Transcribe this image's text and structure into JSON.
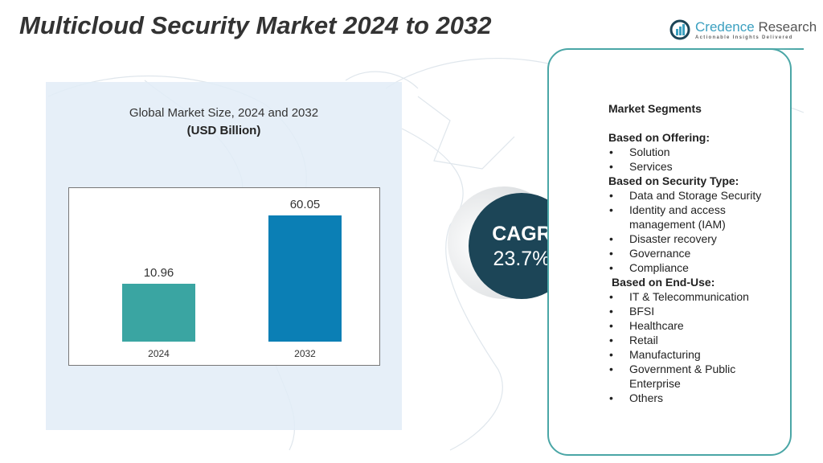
{
  "title": "Multicloud Security Market 2024 to 2032",
  "logo": {
    "name_part1": "Credence",
    "name_part2": " Research",
    "tagline": "Actionable Insights Delivered"
  },
  "chart_data": {
    "type": "bar",
    "title": "Global Market Size, 2024 and 2032",
    "unit": "(USD Billion)",
    "categories": [
      "2024",
      "2032"
    ],
    "values": [
      10.96,
      60.05
    ],
    "labels": [
      "10.96",
      "60.05"
    ],
    "colors": [
      "#3aa5a2",
      "#0b7fb5"
    ],
    "grid": false
  },
  "cagr": {
    "label": "CAGR",
    "value": "23.7%"
  },
  "segments": {
    "heading": "Market Segments",
    "groups": [
      {
        "title": "Based on Offering:",
        "items": [
          "Solution",
          "Services"
        ]
      },
      {
        "title": "Based on Security Type:",
        "items": [
          "Data and Storage Security",
          "Identity and access",
          "management (IAM)",
          "Disaster recovery",
          "Governance",
          "Compliance"
        ]
      },
      {
        "title": "Based on End-Use:",
        "items": [
          "IT & Telecommunication",
          "BFSI",
          "Healthcare",
          "Retail",
          "Manufacturing",
          "Government & Public",
          "Enterprise",
          "Others"
        ]
      }
    ]
  }
}
